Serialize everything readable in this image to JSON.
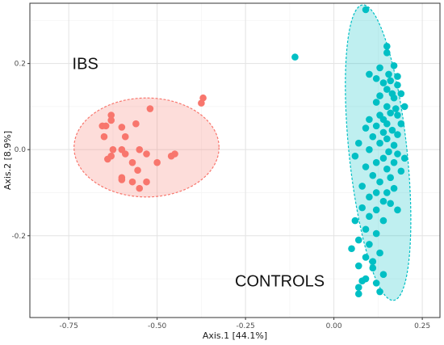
{
  "chart_data": {
    "type": "scatter",
    "xlabel": "Axis.1   [44.1%]",
    "ylabel": "Axis.2   [8.9%]",
    "xlim": [
      -0.86,
      0.3
    ],
    "ylim": [
      -0.39,
      0.34
    ],
    "x_ticks": [
      {
        "value": -0.75,
        "label": "-0.75"
      },
      {
        "value": -0.5,
        "label": "-0.50"
      },
      {
        "value": -0.25,
        "label": "-0.25"
      },
      {
        "value": 0.0,
        "label": "0.00"
      },
      {
        "value": 0.25,
        "label": "0.25"
      }
    ],
    "y_ticks": [
      {
        "value": 0.2,
        "label": "0.2"
      },
      {
        "value": 0.0,
        "label": "0.0"
      },
      {
        "value": -0.2,
        "label": "-0.2"
      }
    ],
    "grid": true,
    "annotations": [
      {
        "text": "IBS",
        "x": -0.74,
        "y": 0.2
      },
      {
        "text": "CONTROLS",
        "x": -0.28,
        "y": -0.305
      }
    ],
    "series": [
      {
        "color": "#F8766D",
        "ellipse": {
          "cx": -0.53,
          "cy": 0.005,
          "rx": 0.205,
          "ry": 0.115,
          "angle": 0
        },
        "points": [
          [
            -0.37,
            0.12
          ],
          [
            -0.375,
            0.108
          ],
          [
            -0.52,
            0.095
          ],
          [
            -0.63,
            0.08
          ],
          [
            -0.63,
            0.068
          ],
          [
            -0.655,
            0.055
          ],
          [
            -0.645,
            0.055
          ],
          [
            -0.56,
            0.06
          ],
          [
            -0.6,
            0.052
          ],
          [
            -0.65,
            0.03
          ],
          [
            -0.59,
            0.03
          ],
          [
            -0.625,
            0.0
          ],
          [
            -0.6,
            0.0
          ],
          [
            -0.55,
            0.0
          ],
          [
            -0.59,
            -0.01
          ],
          [
            -0.53,
            -0.01
          ],
          [
            -0.45,
            -0.01
          ],
          [
            -0.63,
            -0.015
          ],
          [
            -0.64,
            -0.022
          ],
          [
            -0.5,
            -0.03
          ],
          [
            -0.57,
            -0.03
          ],
          [
            -0.555,
            -0.048
          ],
          [
            -0.46,
            -0.015
          ],
          [
            -0.6,
            -0.065
          ],
          [
            -0.6,
            -0.07
          ],
          [
            -0.57,
            -0.075
          ],
          [
            -0.55,
            -0.09
          ],
          [
            -0.53,
            -0.075
          ]
        ]
      },
      {
        "color": "#00BFC4",
        "ellipse": {
          "cx": 0.125,
          "cy": -0.007,
          "rx": 0.082,
          "ry": 0.345,
          "angle": -6
        },
        "points": [
          [
            0.09,
            0.325
          ],
          [
            -0.11,
            0.215
          ],
          [
            0.15,
            0.24
          ],
          [
            0.15,
            0.225
          ],
          [
            0.17,
            0.195
          ],
          [
            0.13,
            0.19
          ],
          [
            0.155,
            0.175
          ],
          [
            0.18,
            0.17
          ],
          [
            0.1,
            0.175
          ],
          [
            0.12,
            0.165
          ],
          [
            0.16,
            0.16
          ],
          [
            0.14,
            0.155
          ],
          [
            0.18,
            0.15
          ],
          [
            0.15,
            0.14
          ],
          [
            0.19,
            0.13
          ],
          [
            0.165,
            0.13
          ],
          [
            0.13,
            0.125
          ],
          [
            0.17,
            0.12
          ],
          [
            0.12,
            0.11
          ],
          [
            0.15,
            0.1
          ],
          [
            0.175,
            0.095
          ],
          [
            0.2,
            0.1
          ],
          [
            0.16,
            0.085
          ],
          [
            0.13,
            0.08
          ],
          [
            0.18,
            0.08
          ],
          [
            0.1,
            0.07
          ],
          [
            0.14,
            0.07
          ],
          [
            0.15,
            0.06
          ],
          [
            0.19,
            0.06
          ],
          [
            0.12,
            0.055
          ],
          [
            0.09,
            0.05
          ],
          [
            0.165,
            0.045
          ],
          [
            0.14,
            0.04
          ],
          [
            0.18,
            0.035
          ],
          [
            0.11,
            0.03
          ],
          [
            0.15,
            0.025
          ],
          [
            0.07,
            0.015
          ],
          [
            0.13,
            0.015
          ],
          [
            0.17,
            0.01
          ],
          [
            0.1,
            0.0
          ],
          [
            0.155,
            -0.005
          ],
          [
            0.18,
            -0.01
          ],
          [
            0.06,
            -0.015
          ],
          [
            0.14,
            -0.02
          ],
          [
            0.2,
            -0.02
          ],
          [
            0.12,
            -0.03
          ],
          [
            0.17,
            -0.03
          ],
          [
            0.09,
            -0.04
          ],
          [
            0.15,
            -0.045
          ],
          [
            0.19,
            -0.05
          ],
          [
            0.11,
            -0.06
          ],
          [
            0.16,
            -0.065
          ],
          [
            0.13,
            -0.075
          ],
          [
            0.08,
            -0.085
          ],
          [
            0.17,
            -0.09
          ],
          [
            0.12,
            -0.1
          ],
          [
            0.15,
            -0.1
          ],
          [
            0.1,
            -0.11
          ],
          [
            0.14,
            -0.12
          ],
          [
            0.16,
            -0.125
          ],
          [
            0.08,
            -0.135
          ],
          [
            0.12,
            -0.14
          ],
          [
            0.18,
            -0.14
          ],
          [
            0.1,
            -0.155
          ],
          [
            0.06,
            -0.165
          ],
          [
            0.14,
            -0.165
          ],
          [
            0.09,
            -0.185
          ],
          [
            0.12,
            -0.195
          ],
          [
            0.07,
            -0.21
          ],
          [
            0.1,
            -0.22
          ],
          [
            0.05,
            -0.23
          ],
          [
            0.13,
            -0.24
          ],
          [
            0.09,
            -0.25
          ],
          [
            0.11,
            -0.26
          ],
          [
            0.07,
            -0.27
          ],
          [
            0.11,
            -0.275
          ],
          [
            0.14,
            -0.29
          ],
          [
            0.09,
            -0.3
          ],
          [
            0.08,
            -0.305
          ],
          [
            0.12,
            -0.31
          ],
          [
            0.07,
            -0.32
          ],
          [
            0.13,
            -0.33
          ],
          [
            0.07,
            -0.335
          ]
        ]
      }
    ]
  }
}
